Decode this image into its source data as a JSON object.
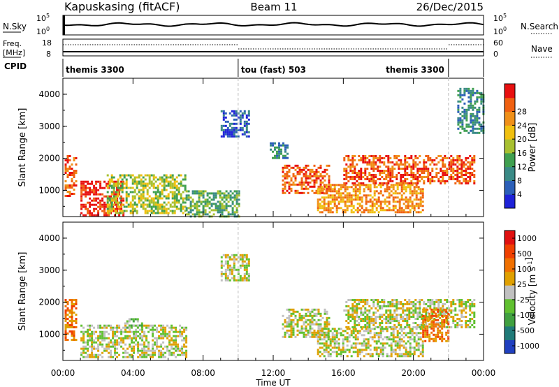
{
  "header": {
    "station": "Kapuskasing (fitACF)",
    "beam": "Beam 11",
    "date": "26/Dec/2015"
  },
  "panel_labels": {
    "nsky": "N.Sky",
    "nsky_top": "10^5",
    "nsky_bottom": "10^0",
    "nsearch": "N.Search",
    "nsearch_top": "10^5",
    "nsearch_bottom": "10^0",
    "freq": "Freq.",
    "freq_unit": "[MHz]",
    "freq_top": "18",
    "freq_bottom": "8",
    "nave": "Nave",
    "nave_top": "60",
    "nave_bottom": "0",
    "cpid": "CPID"
  },
  "cpid_segments": [
    {
      "label": "themis 3300",
      "start": 0.0,
      "end": 10.0
    },
    {
      "label": "tou (fast) 503",
      "start": 10.0,
      "end": 22.0
    },
    {
      "label": "themis 3300",
      "start": 22.0,
      "end": 24.0
    }
  ],
  "axes": {
    "xlabel": "Time UT",
    "x_ticks": [
      "00:00",
      "04:00",
      "08:00",
      "12:00",
      "16:00",
      "20:00",
      "00:00"
    ],
    "xlim_hours": [
      0,
      24
    ],
    "ylabel": "Slant Range [km]",
    "ylim_km": [
      180,
      4500
    ],
    "y_ticks": [
      "1000",
      "2000",
      "3000",
      "4000"
    ]
  },
  "colorbars": {
    "power": {
      "label": "Power [dB]",
      "tick_labels": [
        "4",
        "8",
        "12",
        "16",
        "20",
        "24",
        "28"
      ],
      "colors": [
        "#1e22d8",
        "#2b5fb8",
        "#3a8a86",
        "#40a050",
        "#a8c030",
        "#f0c010",
        "#f09018",
        "#f06010",
        "#e81010"
      ]
    },
    "velocity": {
      "label": "Velocity [m s^-1]",
      "tick_labels": [
        "1000",
        "500",
        "100",
        "25",
        "-25",
        "-100",
        "-500",
        "-1000"
      ],
      "colors": [
        "#2040c0",
        "#207a78",
        "#40a040",
        "#60c030",
        "#c0c0c0",
        "#e0a000",
        "#f07000",
        "#f04000",
        "#e01010"
      ]
    }
  },
  "chart_data": [
    {
      "type": "heatmap",
      "name": "power",
      "xlim": [
        0,
        24
      ],
      "ylim": [
        180,
        4500
      ],
      "regions": [
        {
          "t0": 0.1,
          "t1": 0.8,
          "r0": 800,
          "r1": 2100,
          "level": 7
        },
        {
          "t0": 1.0,
          "t1": 3.5,
          "r0": 200,
          "r1": 1300,
          "level": 8
        },
        {
          "t0": 2.5,
          "t1": 7.0,
          "r0": 300,
          "r1": 1500,
          "level": 4
        },
        {
          "t0": 7.0,
          "t1": 10.0,
          "r0": 200,
          "r1": 1000,
          "level": 3
        },
        {
          "t0": 9.0,
          "t1": 10.6,
          "r0": 2700,
          "r1": 3500,
          "level": 1
        },
        {
          "t0": 11.8,
          "t1": 12.8,
          "r0": 2000,
          "r1": 2500,
          "level": 2
        },
        {
          "t0": 12.5,
          "t1": 15.2,
          "r0": 900,
          "r1": 1800,
          "level": 7
        },
        {
          "t0": 14.5,
          "t1": 20.5,
          "r0": 300,
          "r1": 1200,
          "level": 6
        },
        {
          "t0": 16.0,
          "t1": 23.5,
          "r0": 1200,
          "r1": 2100,
          "level": 7
        },
        {
          "t0": 22.5,
          "t1": 24.0,
          "r0": 2800,
          "r1": 4200,
          "level": 2
        }
      ]
    },
    {
      "type": "heatmap",
      "name": "velocity",
      "xlim": [
        0,
        24
      ],
      "ylim": [
        180,
        4500
      ],
      "regions": [
        {
          "t0": 0.1,
          "t1": 0.8,
          "r0": 800,
          "r1": 2100,
          "level": 6
        },
        {
          "t0": 1.0,
          "t1": 7.0,
          "r0": 300,
          "r1": 1300,
          "level": 4
        },
        {
          "t0": 3.5,
          "t1": 4.5,
          "r0": 1200,
          "r1": 1500,
          "level": 3
        },
        {
          "t0": 9.0,
          "t1": 10.6,
          "r0": 2700,
          "r1": 3500,
          "level": 4
        },
        {
          "t0": 12.5,
          "t1": 15.2,
          "r0": 900,
          "r1": 1800,
          "level": 4
        },
        {
          "t0": 14.5,
          "t1": 20.5,
          "r0": 300,
          "r1": 1200,
          "level": 4
        },
        {
          "t0": 16.0,
          "t1": 23.5,
          "r0": 1200,
          "r1": 2100,
          "level": 4
        },
        {
          "t0": 20.5,
          "t1": 22.0,
          "r0": 800,
          "r1": 1800,
          "level": 6
        }
      ]
    }
  ]
}
